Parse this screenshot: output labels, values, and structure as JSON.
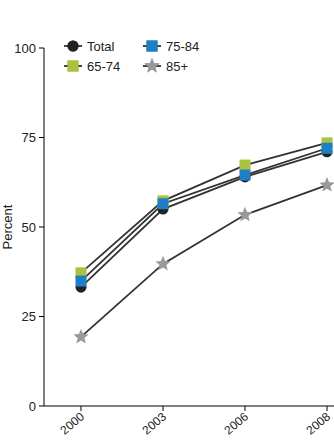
{
  "chart_data": {
    "type": "line",
    "y_label": "Percent",
    "categories": [
      "2000",
      "2003",
      "2006",
      "2008"
    ],
    "series": [
      {
        "name": "Total",
        "color": "#222222",
        "marker": "circle",
        "values": [
          33.2,
          55,
          64,
          71
        ]
      },
      {
        "name": "65-74",
        "color": "#a9c23f",
        "marker": "square",
        "values": [
          37.2,
          57.3,
          67.3,
          73.5
        ]
      },
      {
        "name": "75-84",
        "color": "#1f7fc4",
        "marker": "square",
        "values": [
          34.9,
          56.5,
          64.5,
          72
        ]
      },
      {
        "name": "85+",
        "color": "#999999",
        "marker": "star",
        "values": [
          19.3,
          39.7,
          53.4,
          61.7
        ]
      }
    ],
    "ylim": [
      0,
      100
    ],
    "yticks": [
      0,
      25,
      50,
      75,
      100
    ],
    "grid": false,
    "legend": "upper left"
  }
}
